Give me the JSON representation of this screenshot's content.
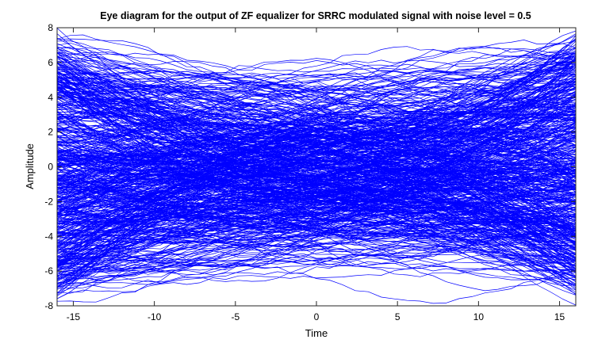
{
  "chart_data": {
    "type": "line",
    "title": "Eye diagram for the output of ZF equalizer for SRRC modulated signal with noise level = 0.5",
    "xlabel": "Time",
    "ylabel": "Amplitude",
    "xlim": [
      -16,
      16
    ],
    "ylim": [
      -8,
      8
    ],
    "xticks": [
      -15,
      -10,
      -5,
      0,
      5,
      10,
      15
    ],
    "xtick_labels": [
      "-15",
      "-10",
      "-5",
      "0",
      "5",
      "10",
      "15"
    ],
    "yticks": [
      -8,
      -6,
      -4,
      -2,
      0,
      2,
      4,
      6,
      8
    ],
    "ytick_labels": [
      "-8",
      "-6",
      "-4",
      "-2",
      "0",
      "2",
      "4",
      "6",
      "8"
    ],
    "grid": false,
    "trace_color": "#0000ff",
    "trace_count": 600,
    "symbol_levels": [
      -7,
      -5,
      -3,
      -1,
      1,
      3,
      5,
      7
    ],
    "noise_level": 0.5,
    "eye_opening_near": 0
  }
}
